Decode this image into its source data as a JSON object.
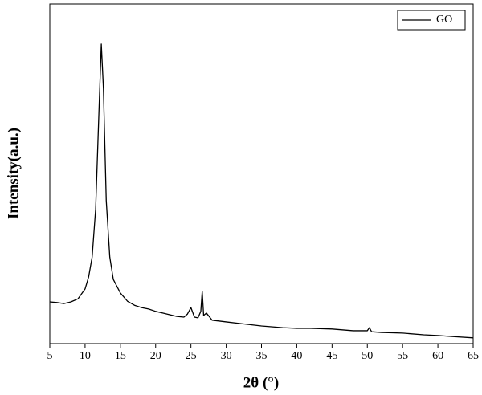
{
  "chart_data": {
    "type": "line",
    "x_label": "2θ (°)",
    "y_label": "Intensity(a.u.)",
    "x": [
      5,
      6,
      7,
      8,
      9,
      10,
      10.5,
      11,
      11.5,
      12,
      12.3,
      12.6,
      13,
      13.5,
      14,
      15,
      16,
      17,
      18,
      19,
      20,
      21,
      22,
      23,
      24,
      24.5,
      25,
      25.5,
      26,
      26.4,
      26.6,
      26.8,
      27.2,
      28,
      30,
      32,
      35,
      38,
      40,
      42,
      45,
      48,
      50,
      50.3,
      50.6,
      52,
      55,
      58,
      60,
      62,
      65
    ],
    "series": [
      {
        "name": "GO",
        "color": "#000000",
        "values": [
          12.3,
          12.1,
          11.8,
          12.3,
          13.2,
          16.1,
          19.6,
          25.5,
          39.7,
          70.4,
          88.2,
          75.1,
          42.1,
          25.5,
          18.9,
          14.9,
          12.5,
          11.3,
          10.6,
          10.2,
          9.5,
          9.0,
          8.5,
          8.0,
          7.8,
          8.7,
          10.6,
          7.8,
          7.6,
          9.5,
          15.4,
          8.3,
          9.0,
          6.9,
          6.4,
          5.9,
          5.2,
          4.7,
          4.5,
          4.5,
          4.3,
          3.8,
          3.8,
          4.7,
          3.5,
          3.3,
          3.1,
          2.6,
          2.4,
          2.1,
          1.7
        ]
      }
    ],
    "xlim": [
      5,
      65
    ],
    "xticks": [
      5,
      10,
      15,
      20,
      25,
      30,
      35,
      40,
      45,
      50,
      55,
      60,
      65
    ],
    "ylim": [
      0,
      100
    ],
    "legend": "top-right"
  }
}
